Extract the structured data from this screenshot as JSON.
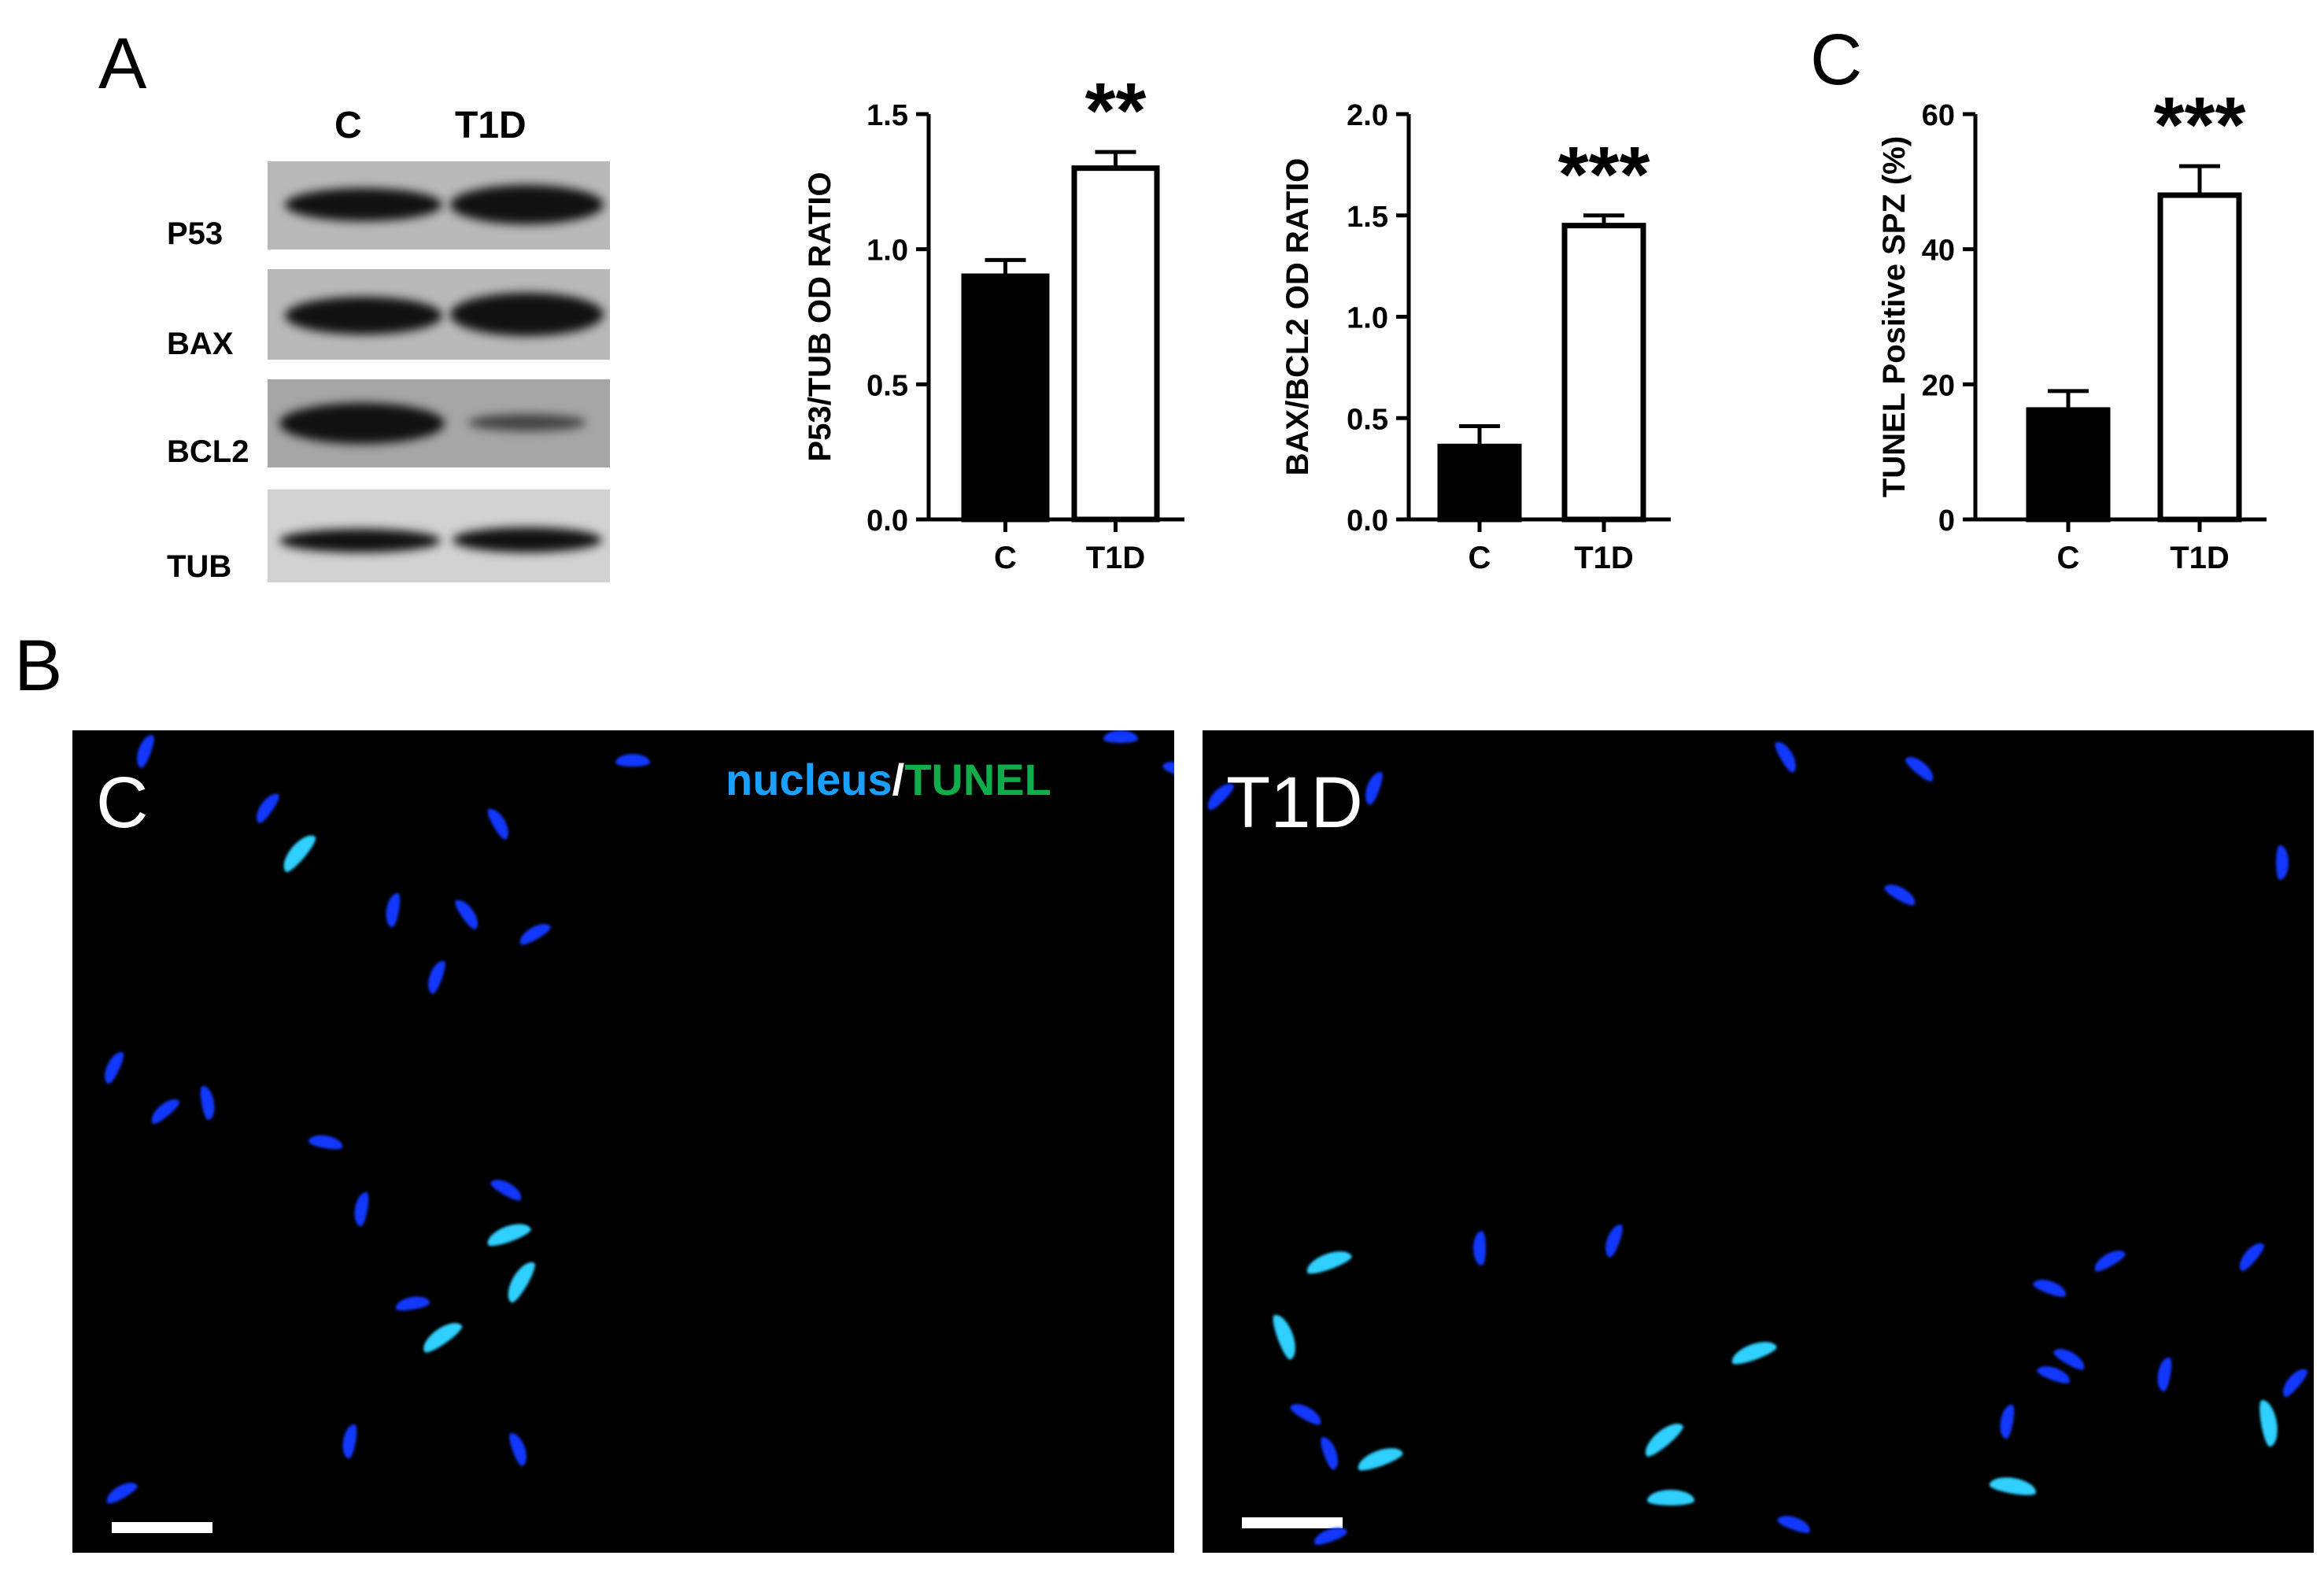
{
  "panels": {
    "A": "A",
    "B": "B",
    "C": "C"
  },
  "western_blot": {
    "lanes": [
      "C",
      "T1D"
    ],
    "proteins": [
      "P53",
      "BAX",
      "BCL2",
      "TUB"
    ],
    "relative_band_intensity": {
      "P53": [
        0.9,
        1.0
      ],
      "BAX": [
        0.85,
        1.0
      ],
      "BCL2": [
        1.0,
        0.35
      ],
      "TUB": [
        0.95,
        0.95
      ]
    }
  },
  "chart_data": [
    {
      "type": "bar",
      "categories": [
        "C",
        "T1D"
      ],
      "values": [
        0.9,
        1.3
      ],
      "errors": [
        0.06,
        0.06
      ],
      "fills": [
        "#000000",
        "#ffffff"
      ],
      "ylabel": "P53/TUB OD RATIO",
      "ylim": [
        0,
        1.5
      ],
      "yticks": [
        "0.0",
        "0.5",
        "1.0",
        "1.5"
      ],
      "significance": [
        "",
        "**"
      ]
    },
    {
      "type": "bar",
      "categories": [
        "C",
        "T1D"
      ],
      "values": [
        0.36,
        1.45
      ],
      "errors": [
        0.1,
        0.05
      ],
      "fills": [
        "#000000",
        "#ffffff"
      ],
      "ylabel": "BAX/BCL2 OD RATIO",
      "ylim": [
        0,
        2.0
      ],
      "yticks": [
        "0.0",
        "0.5",
        "1.0",
        "1.5",
        "2.0"
      ],
      "significance": [
        "",
        "***"
      ]
    },
    {
      "type": "bar",
      "categories": [
        "C",
        "T1D"
      ],
      "values": [
        16.2,
        48
      ],
      "errors": [
        2.8,
        4.3
      ],
      "fills": [
        "#000000",
        "#ffffff"
      ],
      "ylabel": "TUNEL Positive SPZ (%)",
      "ylim": [
        0,
        60
      ],
      "yticks": [
        "0",
        "20",
        "40",
        "60"
      ],
      "significance": [
        "",
        "***"
      ]
    }
  ],
  "micrographs": {
    "left_label": "C",
    "right_label": "T1D",
    "legend_nucleus": "nucleus",
    "legend_sep": "/",
    "legend_tunel": "TUNEL",
    "colors": {
      "nucleus": "#1aa0ff",
      "tunel": "#0fae4a",
      "cell_blue": "#1238ff",
      "cell_cyan": "#2fd0ff"
    }
  }
}
